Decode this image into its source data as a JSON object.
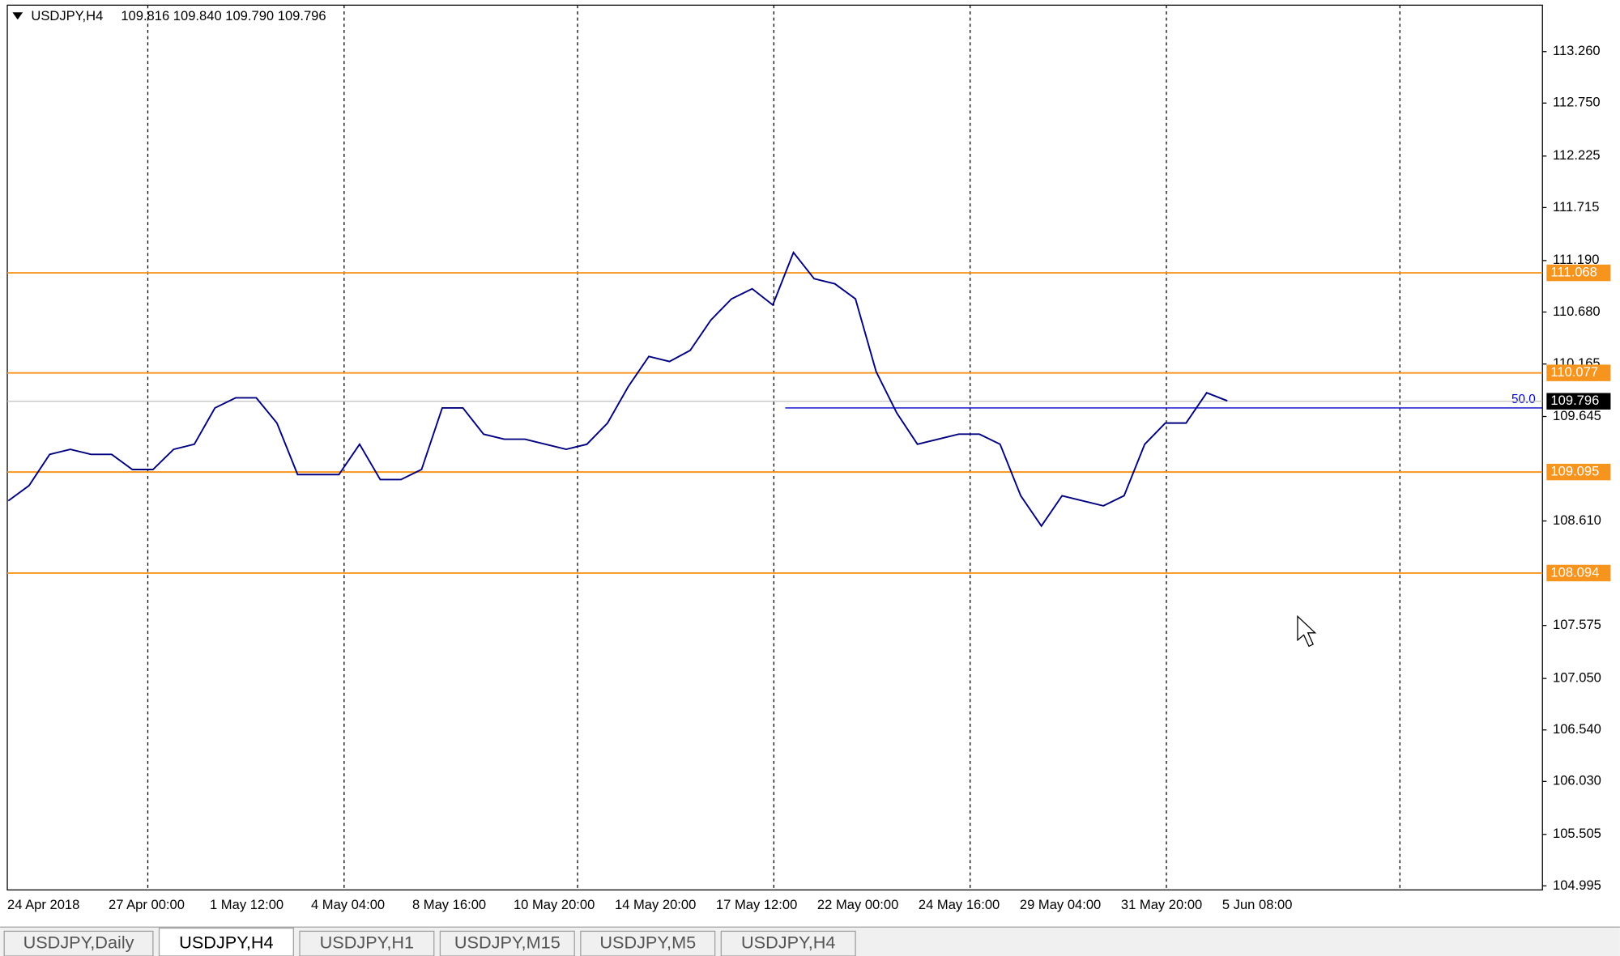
{
  "header": {
    "symbol": "USDJPY,H4",
    "ohlc": "109.816 109.840 109.790 109.796"
  },
  "chart_data": {
    "type": "line",
    "x_labels": [
      "24 Apr 2018",
      "27 Apr 00:00",
      "1 May 12:00",
      "4 May 04:00",
      "8 May 16:00",
      "10 May 20:00",
      "14 May 20:00",
      "17 May 12:00",
      "22 May 00:00",
      "24 May 16:00",
      "29 May 04:00",
      "31 May 20:00",
      "5 Jun 08:00"
    ],
    "values": [
      108.81,
      108.96,
      109.27,
      109.32,
      109.27,
      109.27,
      109.12,
      109.12,
      109.32,
      109.37,
      109.73,
      109.83,
      109.83,
      109.58,
      109.07,
      109.07,
      109.07,
      109.37,
      109.02,
      109.02,
      109.12,
      109.73,
      109.73,
      109.47,
      109.42,
      109.42,
      109.37,
      109.32,
      109.37,
      109.58,
      109.94,
      110.24,
      110.19,
      110.3,
      110.6,
      110.81,
      110.91,
      110.75,
      111.27,
      111.01,
      110.96,
      110.81,
      110.09,
      109.68,
      109.37,
      109.42,
      109.47,
      109.47,
      109.37,
      108.86,
      108.56,
      108.86,
      108.81,
      108.76,
      108.86,
      109.37,
      109.58,
      109.58,
      109.88,
      109.8
    ],
    "color": "#000080",
    "ylim": [
      104.955,
      113.72
    ],
    "yticks": [
      {
        "value": 113.26,
        "label": "113.260"
      },
      {
        "value": 112.75,
        "label": "112.750"
      },
      {
        "value": 112.225,
        "label": "112.225"
      },
      {
        "value": 111.715,
        "label": "111.715"
      },
      {
        "value": 111.19,
        "label": "111.190"
      },
      {
        "value": 110.68,
        "label": "110.680"
      },
      {
        "value": 110.165,
        "label": "110.165"
      },
      {
        "value": 109.645,
        "label": "109.645"
      },
      {
        "value": 108.61,
        "label": "108.610"
      },
      {
        "value": 107.575,
        "label": "107.575"
      },
      {
        "value": 107.05,
        "label": "107.050"
      },
      {
        "value": 106.54,
        "label": "106.540"
      },
      {
        "value": 106.03,
        "label": "106.030"
      },
      {
        "value": 105.505,
        "label": "105.505"
      },
      {
        "value": 104.995,
        "label": "104.995"
      }
    ],
    "levels": [
      {
        "value": 111.068,
        "label": "111.068"
      },
      {
        "value": 110.077,
        "label": "110.077"
      },
      {
        "value": 109.095,
        "label": "109.095"
      },
      {
        "value": 108.094,
        "label": "108.094"
      }
    ],
    "level_color": "#f7941d",
    "current": {
      "value": 109.796,
      "label": "109.796"
    },
    "fib": {
      "value": 109.73,
      "label": "50.0"
    }
  },
  "tabs": [
    "USDJPY,Daily",
    "USDJPY,H4",
    "USDJPY,H1",
    "USDJPY,M15",
    "USDJPY,M5",
    "USDJPY,H4"
  ],
  "active_tab": 1
}
